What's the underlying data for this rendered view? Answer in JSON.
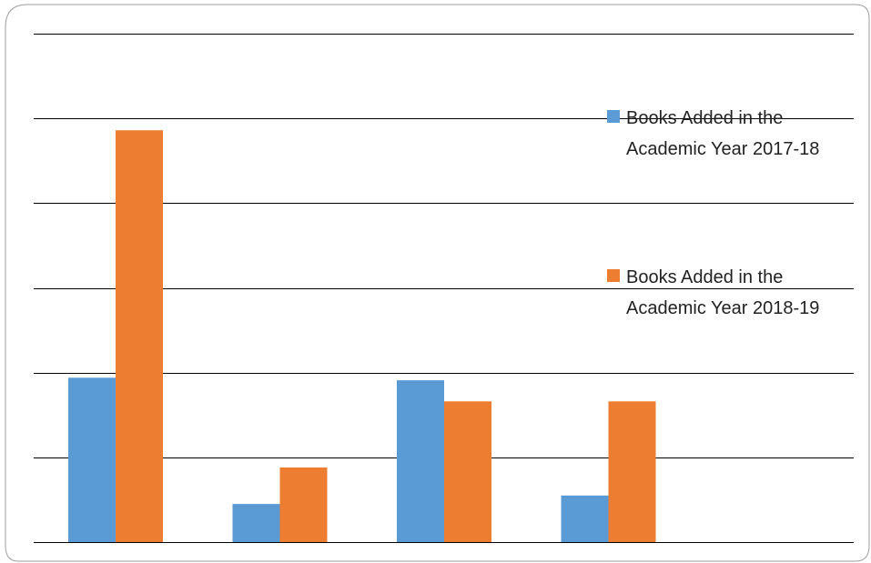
{
  "chart_data": {
    "type": "bar",
    "categories": [
      "",
      "",
      "",
      ""
    ],
    "series": [
      {
        "name": "Books Added in the Academic Year 2017-18",
        "values": [
          970,
          225,
          955,
          275
        ],
        "color": "#5B9BD5"
      },
      {
        "name": "Books Added in the Academic Year 2018-19",
        "values": [
          2430,
          440,
          830,
          830
        ],
        "color": "#ED7D31"
      }
    ],
    "ylim": [
      0,
      3000
    ],
    "grid": true,
    "legend_position": "right",
    "legend": [
      {
        "line1": "Books Added in the",
        "line2": "Academic Year 2017-18"
      },
      {
        "line1": "Books Added in the",
        "line2": "Academic Year 2018-19"
      }
    ]
  }
}
